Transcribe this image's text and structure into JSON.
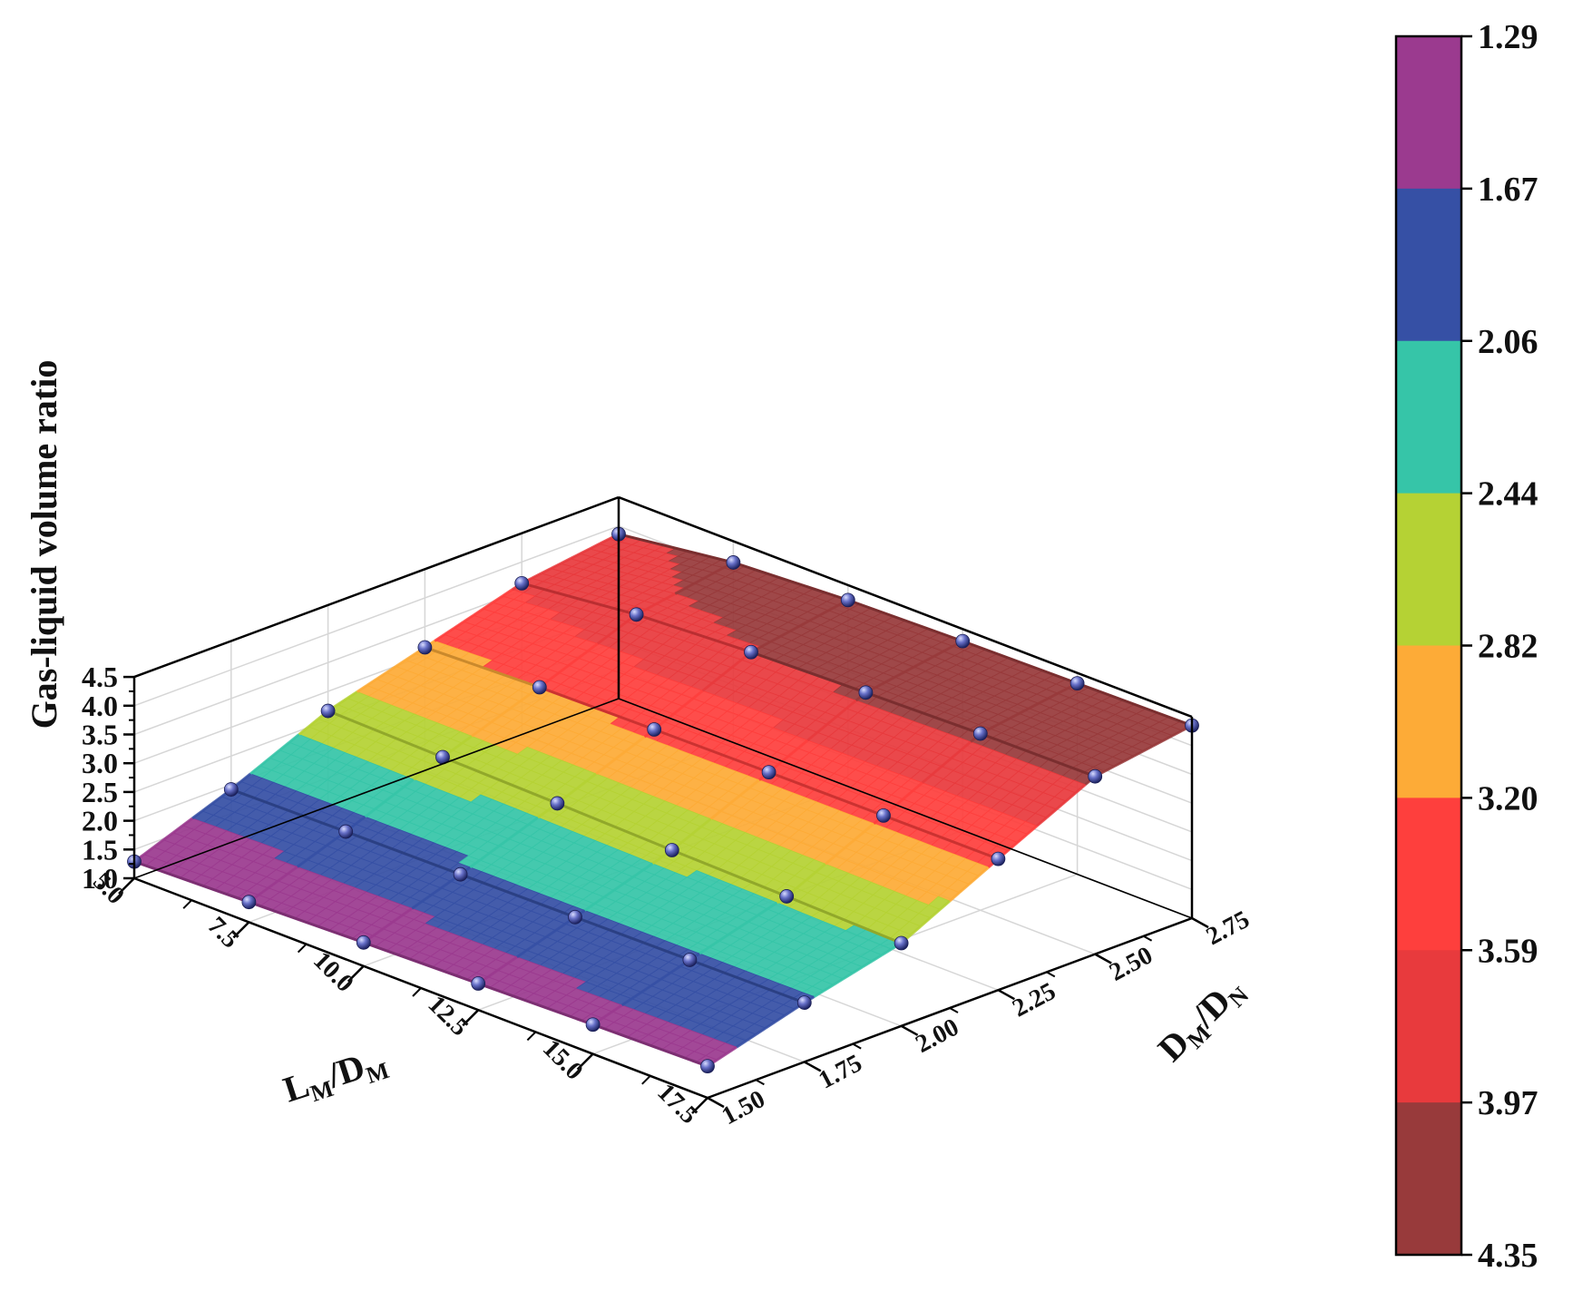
{
  "chart_data": {
    "type": "surface3d",
    "x_axis": {
      "label_main": "L",
      "label_sub": "M",
      "label_sep": "/",
      "label_main2": "D",
      "label_sub2": "M",
      "ticks": [
        "5.0",
        "7.5",
        "10.0",
        "12.5",
        "15.0",
        "17.5"
      ],
      "range": [
        5.0,
        17.5
      ]
    },
    "y_axis": {
      "label_main": "D",
      "label_sub": "M",
      "label_sep": "/",
      "label_main2": "D",
      "label_sub2": "N",
      "ticks": [
        "1.50",
        "1.75",
        "2.00",
        "2.25",
        "2.50",
        "2.75"
      ],
      "range": [
        1.5,
        2.75
      ]
    },
    "z_axis": {
      "label": "Gas-liquid volume ratio",
      "ticks": [
        "1.0",
        "1.5",
        "2.0",
        "2.5",
        "3.0",
        "3.5",
        "4.0",
        "4.5"
      ],
      "range": [
        1.0,
        4.5
      ]
    },
    "x": [
      5.0,
      7.5,
      10.0,
      12.5,
      15.0,
      17.5
    ],
    "y": [
      1.5,
      1.75,
      2.0,
      2.25,
      2.5,
      2.75
    ],
    "z_rows_by_y": [
      [
        1.29,
        1.35,
        1.41,
        1.46,
        1.51,
        1.55
      ],
      [
        1.92,
        1.95,
        1.97,
        1.99,
        2.01,
        2.03
      ],
      [
        2.66,
        2.62,
        2.58,
        2.53,
        2.49,
        2.44
      ],
      [
        3.14,
        3.21,
        3.24,
        3.26,
        3.27,
        3.28
      ],
      [
        3.63,
        3.85,
        3.96,
        4.02,
        4.07,
        4.09
      ],
      [
        3.86,
        4.13,
        4.24,
        4.29,
        4.32,
        4.35
      ]
    ],
    "colorbar": {
      "ticks": [
        "1.29",
        "1.67",
        "2.06",
        "2.44",
        "2.82",
        "3.20",
        "3.59",
        "3.97",
        "4.35"
      ],
      "levels": [
        1.29,
        1.67,
        2.06,
        2.44,
        2.82,
        3.2,
        3.59,
        3.97,
        4.35
      ],
      "colors": [
        "#9b3a8f",
        "#3650a5",
        "#36c5a8",
        "#b5d234",
        "#fdab37",
        "#fe3f3d",
        "#e83a3d",
        "#983a3b"
      ]
    },
    "grid": true,
    "markers": "spheres"
  }
}
